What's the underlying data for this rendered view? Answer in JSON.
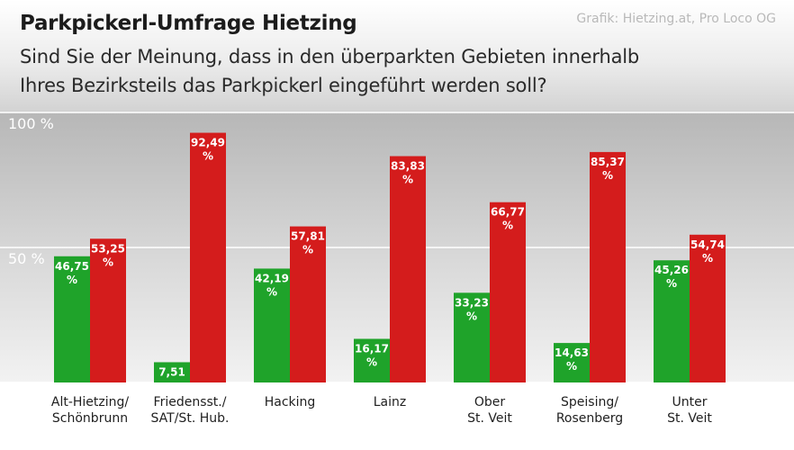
{
  "header": {
    "title": "Parkpickerl-Umfrage Hietzing",
    "question_line1": "Sind Sie der Meinung, dass in den überparkten Gebieten innerhalb",
    "question_line2": "Ihres Bezirksteils das Parkpickerl eingeführt werden soll?",
    "credit": "Grafik: Hietzing.at, Pro Loco OG"
  },
  "chart_data": {
    "type": "bar",
    "title": "Parkpickerl-Umfrage Hietzing",
    "subtitle": "Sind Sie der Meinung, dass in den überparkten Gebieten innerhalb Ihres Bezirksteils das Parkpickerl eingeführt werden soll?",
    "categories": [
      [
        "Alt-Hietzing/",
        "Schönbrunn"
      ],
      [
        "Friedensst./",
        "SAT/St. Hub."
      ],
      [
        "Hacking"
      ],
      [
        "Lainz"
      ],
      [
        "Ober",
        "St. Veit"
      ],
      [
        "Speising/",
        "Rosenberg"
      ],
      [
        "Unter",
        "St. Veit"
      ]
    ],
    "series": [
      {
        "name": "green",
        "color": "#1fa32a",
        "values": [
          46.75,
          7.51,
          42.19,
          16.17,
          33.23,
          14.63,
          45.26
        ],
        "labels": [
          [
            "46,75",
            "%"
          ],
          [
            "7,51"
          ],
          [
            "42,19",
            "%"
          ],
          [
            "16,17",
            "%"
          ],
          [
            "33,23",
            "%"
          ],
          [
            "14,63",
            "%"
          ],
          [
            "45,26",
            "%"
          ]
        ]
      },
      {
        "name": "red",
        "color": "#d41c1c",
        "values": [
          53.25,
          92.49,
          57.81,
          83.83,
          66.77,
          85.37,
          54.74
        ],
        "labels": [
          [
            "53,25",
            "%"
          ],
          [
            "92,49",
            "%"
          ],
          [
            "57,81",
            "%"
          ],
          [
            "83,83",
            "%"
          ],
          [
            "66,77",
            "%"
          ],
          [
            "85,37",
            "%"
          ],
          [
            "54,74",
            "%"
          ]
        ]
      }
    ],
    "y_ticks": [
      {
        "value": 50,
        "label": "50 %"
      },
      {
        "value": 100,
        "label": "100 %"
      }
    ],
    "ylim": [
      0,
      100
    ],
    "grid": true,
    "legend": "none"
  }
}
